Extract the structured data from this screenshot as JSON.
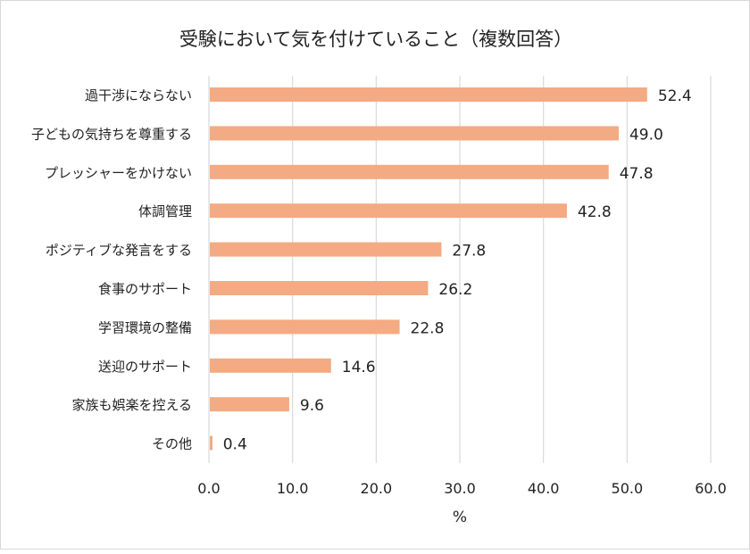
{
  "chart_data": {
    "type": "bar",
    "orientation": "horizontal",
    "title": "受験において気を付けていること（複数回答）",
    "xlabel": "%",
    "ylabel": "",
    "categories": [
      "過干渉にならない",
      "子どもの気持ちを尊重する",
      "プレッシャーをかけない",
      "体調管理",
      "ポジティブな発言をする",
      "食事のサポート",
      "学習環境の整備",
      "送迎のサポート",
      "家族も娯楽を控える",
      "その他"
    ],
    "values": [
      52.4,
      49.0,
      47.8,
      42.8,
      27.8,
      26.2,
      22.8,
      14.6,
      9.6,
      0.4
    ],
    "value_labels": [
      "52.4",
      "49.0",
      "47.8",
      "42.8",
      "27.8",
      "26.2",
      "22.8",
      "14.6",
      "9.6",
      "0.4"
    ],
    "xlim": [
      0,
      60
    ],
    "xticks": [
      "0.0",
      "10.0",
      "20.0",
      "30.0",
      "40.0",
      "50.0",
      "60.0"
    ],
    "grid": true,
    "legend": "none",
    "bar_color": "#F4AA82"
  }
}
